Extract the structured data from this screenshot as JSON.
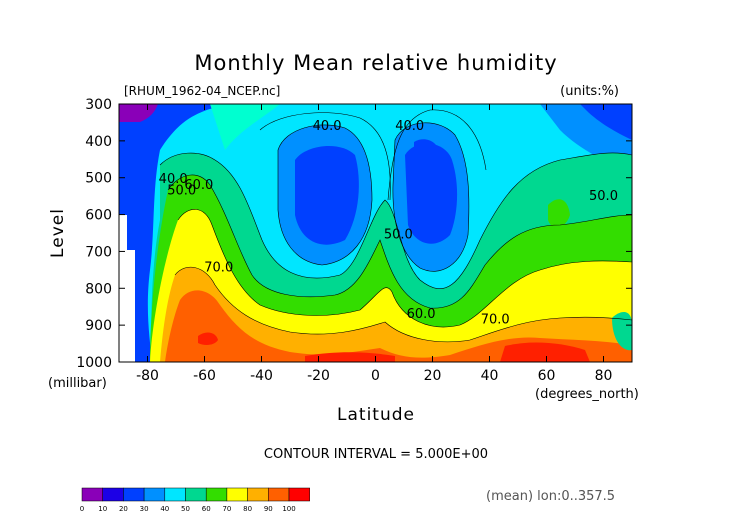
{
  "header": {
    "title": "Monthly Mean relative humidity",
    "file_label": "[RHUM_1962-04_NCEP.nc]",
    "units_label": "(units:%)"
  },
  "footer": {
    "contour_interval": "CONTOUR INTERVAL = 5.000E+00",
    "mean_note": "(mean) lon:0..357.5"
  },
  "chart_data": {
    "type": "heatmap",
    "title": "Monthly Mean relative humidity",
    "xlabel": "Latitude",
    "xunit": "(degrees_north)",
    "ylabel": "Level",
    "yunit": "(millibar)",
    "xlim": [
      -90,
      90
    ],
    "ylim": [
      1000,
      300
    ],
    "x_ticks": [
      "-80",
      "-60",
      "-40",
      "-20",
      "0",
      "20",
      "40",
      "60",
      "80"
    ],
    "y_ticks": [
      "300",
      "400",
      "500",
      "600",
      "700",
      "800",
      "900",
      "1000"
    ],
    "x_tick_values": [
      -80,
      -60,
      -40,
      -20,
      0,
      20,
      40,
      60,
      80
    ],
    "y_tick_values": [
      300,
      400,
      500,
      600,
      700,
      800,
      900,
      1000
    ],
    "contour_interval": 5,
    "contour_labels": [
      {
        "text": "40.0",
        "x": -17,
        "y": 370
      },
      {
        "text": "40.0",
        "x": 12,
        "y": 370
      },
      {
        "text": "40.0",
        "x": -71,
        "y": 515
      },
      {
        "text": "50.0",
        "x": -68,
        "y": 545
      },
      {
        "text": "60.0",
        "x": -62,
        "y": 530
      },
      {
        "text": "70.0",
        "x": -55,
        "y": 755
      },
      {
        "text": "50.0",
        "x": 8,
        "y": 665
      },
      {
        "text": "60.0",
        "x": 16,
        "y": 880
      },
      {
        "text": "70.0",
        "x": 42,
        "y": 895
      },
      {
        "text": "50.0",
        "x": 80,
        "y": 560
      }
    ],
    "colorbar": {
      "levels": [
        "0",
        "10",
        "20",
        "30",
        "40",
        "50",
        "60",
        "70",
        "80",
        "90",
        "100"
      ],
      "colors": [
        "#8a00b8",
        "#1c00e6",
        "#0040ff",
        "#0090ff",
        "#00e6ff",
        "#00d890",
        "#33dd00",
        "#ffff00",
        "#ffb000",
        "#ff6000",
        "#ff0000"
      ]
    },
    "field_colors": {
      "purple": "#8a00b8",
      "blue": "#0040ff",
      "midblue": "#0090ff",
      "cyan": "#00e6ff",
      "aqua": "#00ffd0",
      "green": "#00d890",
      "lime": "#33dd00",
      "yellow": "#ffff00",
      "orange": "#ffb000",
      "darkorange": "#ff6000",
      "red": "#ff2000"
    }
  }
}
